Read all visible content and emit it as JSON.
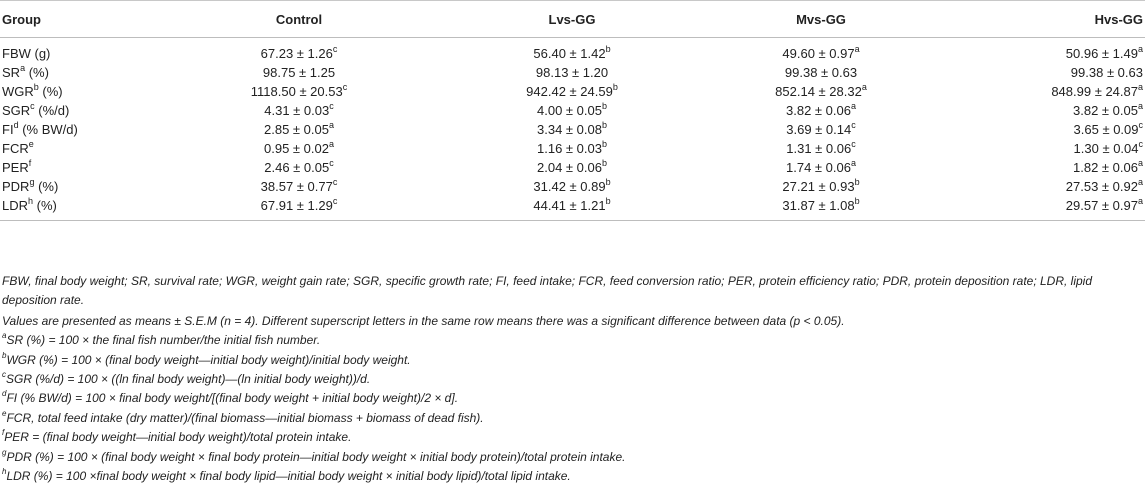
{
  "table": {
    "columns": [
      "Group",
      "Control",
      "Lvs-GG",
      "Mvs-GG",
      "Hvs-GG"
    ],
    "rows": [
      {
        "label": "FBW (g)",
        "label_sup": "",
        "label_suffix": "",
        "cells": [
          {
            "v": "67.23 ± 1.26",
            "s": "c"
          },
          {
            "v": "56.40 ± 1.42",
            "s": "b"
          },
          {
            "v": "49.60 ± 0.97",
            "s": "a"
          },
          {
            "v": "50.96 ± 1.49",
            "s": "a"
          }
        ]
      },
      {
        "label": "SR",
        "label_sup": "a",
        "label_suffix": " (%)",
        "cells": [
          {
            "v": "98.75 ± 1.25",
            "s": ""
          },
          {
            "v": "98.13 ± 1.20",
            "s": ""
          },
          {
            "v": "99.38 ± 0.63",
            "s": ""
          },
          {
            "v": "99.38 ± 0.63",
            "s": ""
          }
        ]
      },
      {
        "label": "WGR",
        "label_sup": "b",
        "label_suffix": " (%)",
        "cells": [
          {
            "v": "1118.50 ± 20.53",
            "s": "c"
          },
          {
            "v": "942.42 ± 24.59",
            "s": "b"
          },
          {
            "v": "852.14 ± 28.32",
            "s": "a"
          },
          {
            "v": "848.99 ± 24.87",
            "s": "a"
          }
        ]
      },
      {
        "label": "SGR",
        "label_sup": "c",
        "label_suffix": " (%/d)",
        "cells": [
          {
            "v": "4.31 ± 0.03",
            "s": "c"
          },
          {
            "v": "4.00 ± 0.05",
            "s": "b"
          },
          {
            "v": "3.82 ± 0.06",
            "s": "a"
          },
          {
            "v": "3.82 ± 0.05",
            "s": "a"
          }
        ]
      },
      {
        "label": "FI",
        "label_sup": "d",
        "label_suffix": " (% BW/d)",
        "cells": [
          {
            "v": "2.85 ± 0.05",
            "s": "a"
          },
          {
            "v": "3.34 ± 0.08",
            "s": "b"
          },
          {
            "v": "3.69 ± 0.14",
            "s": "c"
          },
          {
            "v": "3.65 ± 0.09",
            "s": "c"
          }
        ]
      },
      {
        "label": "FCR",
        "label_sup": "e",
        "label_suffix": "",
        "cells": [
          {
            "v": "0.95 ± 0.02",
            "s": "a"
          },
          {
            "v": "1.16 ± 0.03",
            "s": "b"
          },
          {
            "v": "1.31 ± 0.06",
            "s": "c"
          },
          {
            "v": "1.30 ± 0.04",
            "s": "c"
          }
        ]
      },
      {
        "label": "PER",
        "label_sup": "f",
        "label_suffix": "",
        "cells": [
          {
            "v": "2.46 ± 0.05",
            "s": "c"
          },
          {
            "v": "2.04 ± 0.06",
            "s": "b"
          },
          {
            "v": "1.74 ± 0.06",
            "s": "a"
          },
          {
            "v": "1.82 ± 0.06",
            "s": "a"
          }
        ]
      },
      {
        "label": "PDR",
        "label_sup": "g",
        "label_suffix": " (%)",
        "cells": [
          {
            "v": "38.57 ± 0.77",
            "s": "c"
          },
          {
            "v": "31.42 ± 0.89",
            "s": "b"
          },
          {
            "v": "27.21 ± 0.93",
            "s": "b"
          },
          {
            "v": "27.53 ± 0.92",
            "s": "a"
          }
        ]
      },
      {
        "label": "LDR",
        "label_sup": "h",
        "label_suffix": " (%)",
        "cells": [
          {
            "v": "67.91 ± 1.29",
            "s": "c"
          },
          {
            "v": "44.41 ± 1.21",
            "s": "b"
          },
          {
            "v": "31.87 ± 1.08",
            "s": "b"
          },
          {
            "v": "29.57 ± 0.97",
            "s": "a"
          }
        ]
      }
    ]
  },
  "notes": {
    "abbreviations": "FBW, final body weight; SR, survival rate; WGR, weight gain rate; SGR, specific growth rate; FI, feed intake; FCR, feed conversion ratio; PER, protein efficiency ratio; PDR, protein deposition rate; LDR, lipid deposition rate.",
    "values": "Values are presented as means ± S.E.M (n = 4). Different superscript letters in the same row means there was a significant difference between data (p < 0.05).",
    "formulas": [
      {
        "sup": "a",
        "text": "SR (%) = 100 × the final fish number/the initial fish number."
      },
      {
        "sup": "b",
        "text": "WGR (%) = 100 × (final body weight—initial body weight)/initial body weight."
      },
      {
        "sup": "c",
        "text": "SGR (%/d) = 100 × ((ln final body weight)—(ln initial body weight))/d."
      },
      {
        "sup": "d",
        "text": "FI (% BW/d) = 100 × final body weight/[(final body weight + initial body weight)/2 × d]."
      },
      {
        "sup": "e",
        "text": "FCR, total feed intake (dry matter)/(final biomass—initial biomass + biomass of dead fish)."
      },
      {
        "sup": "f",
        "text": "PER = (final body weight—initial body weight)/total protein intake."
      },
      {
        "sup": "g",
        "text": "PDR (%) = 100 × (final body weight × final body protein—initial body weight × initial body protein)/total protein intake."
      },
      {
        "sup": "h",
        "text": "LDR (%) = 100 ×final body weight × final body lipid—initial body weight × initial body lipid)/total lipid intake."
      }
    ]
  }
}
